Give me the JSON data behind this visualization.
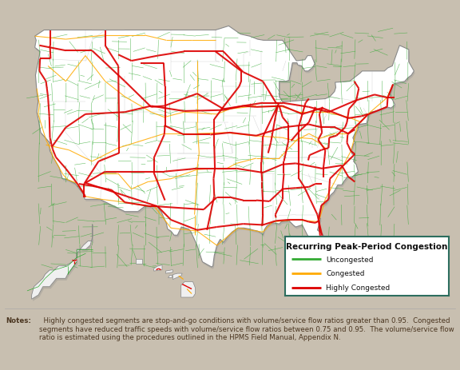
{
  "title": "Recurring Peak-Period Congestion",
  "legend_entries": [
    {
      "label": "Uncongested",
      "color": "#33aa33"
    },
    {
      "label": "Congested",
      "color": "#ffaa00"
    },
    {
      "label": "Highly Congested",
      "color": "#dd0000"
    }
  ],
  "background_color": "#c8bfb0",
  "ocean_color": "#7ab8a8",
  "land_color": "#ffffff",
  "ak_land_color": "#e8e8e8",
  "state_border_color": "#bbbbbb",
  "country_border_color": "#888888",
  "shadow_color": "#888888",
  "notes_bold": "Notes:",
  "notes_rest": "  Highly congested segments are stop-and-go conditions with volume/service flow ratios greater than 0.95.  Congested segments have reduced traffic speeds with volume/service flow ratios between 0.75 and 0.95.  The volume/service flow ratio is estimated using the procedures outlined in the HPMS Field Manual, Appendix N.",
  "notes_color": "#4a3520",
  "legend_border_color": "#2d6e5e",
  "legend_title_fontsize": 7.5,
  "legend_label_fontsize": 6.5,
  "notes_fontsize": 6.2,
  "figsize": [
    5.76,
    4.64
  ],
  "dpi": 100
}
